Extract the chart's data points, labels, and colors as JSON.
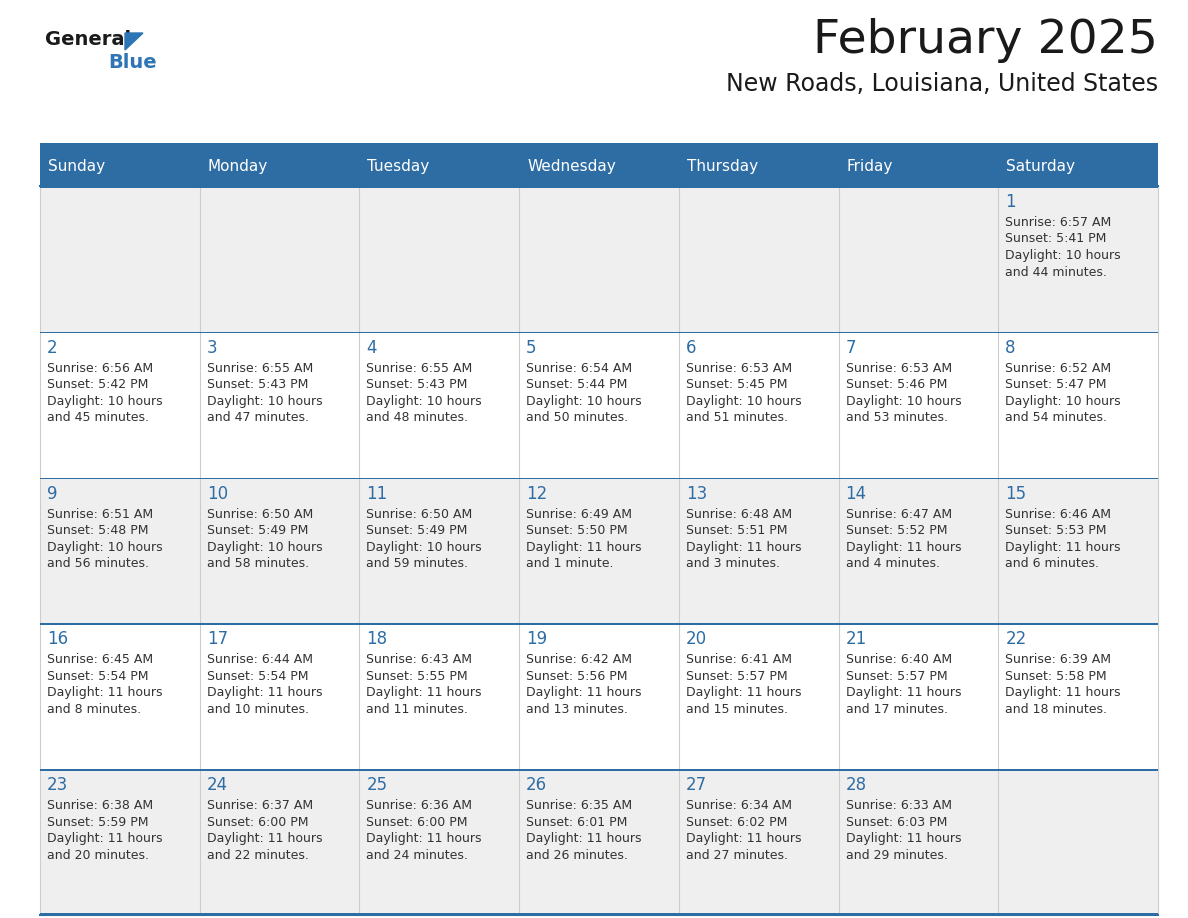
{
  "title": "February 2025",
  "subtitle": "New Roads, Louisiana, United States",
  "header_bg": "#2E6DA4",
  "header_text_color": "#FFFFFF",
  "cell_bg_light": "#EFEFEF",
  "cell_bg_white": "#FFFFFF",
  "day_headers": [
    "Sunday",
    "Monday",
    "Tuesday",
    "Wednesday",
    "Thursday",
    "Friday",
    "Saturday"
  ],
  "title_color": "#1a1a1a",
  "subtitle_color": "#1a1a1a",
  "date_color": "#2E6DA4",
  "info_color": "#333333",
  "line_color": "#2E6DA4",
  "logo_general_color": "#1a1a1a",
  "logo_blue_color": "#2E75B6",
  "calendar_data": [
    [
      null,
      null,
      null,
      null,
      null,
      null,
      {
        "day": "1",
        "sunrise": "6:57 AM",
        "sunset": "5:41 PM",
        "daylight_line1": "Daylight: 10 hours",
        "daylight_line2": "and 44 minutes."
      }
    ],
    [
      {
        "day": "2",
        "sunrise": "6:56 AM",
        "sunset": "5:42 PM",
        "daylight_line1": "Daylight: 10 hours",
        "daylight_line2": "and 45 minutes."
      },
      {
        "day": "3",
        "sunrise": "6:55 AM",
        "sunset": "5:43 PM",
        "daylight_line1": "Daylight: 10 hours",
        "daylight_line2": "and 47 minutes."
      },
      {
        "day": "4",
        "sunrise": "6:55 AM",
        "sunset": "5:43 PM",
        "daylight_line1": "Daylight: 10 hours",
        "daylight_line2": "and 48 minutes."
      },
      {
        "day": "5",
        "sunrise": "6:54 AM",
        "sunset": "5:44 PM",
        "daylight_line1": "Daylight: 10 hours",
        "daylight_line2": "and 50 minutes."
      },
      {
        "day": "6",
        "sunrise": "6:53 AM",
        "sunset": "5:45 PM",
        "daylight_line1": "Daylight: 10 hours",
        "daylight_line2": "and 51 minutes."
      },
      {
        "day": "7",
        "sunrise": "6:53 AM",
        "sunset": "5:46 PM",
        "daylight_line1": "Daylight: 10 hours",
        "daylight_line2": "and 53 minutes."
      },
      {
        "day": "8",
        "sunrise": "6:52 AM",
        "sunset": "5:47 PM",
        "daylight_line1": "Daylight: 10 hours",
        "daylight_line2": "and 54 minutes."
      }
    ],
    [
      {
        "day": "9",
        "sunrise": "6:51 AM",
        "sunset": "5:48 PM",
        "daylight_line1": "Daylight: 10 hours",
        "daylight_line2": "and 56 minutes."
      },
      {
        "day": "10",
        "sunrise": "6:50 AM",
        "sunset": "5:49 PM",
        "daylight_line1": "Daylight: 10 hours",
        "daylight_line2": "and 58 minutes."
      },
      {
        "day": "11",
        "sunrise": "6:50 AM",
        "sunset": "5:49 PM",
        "daylight_line1": "Daylight: 10 hours",
        "daylight_line2": "and 59 minutes."
      },
      {
        "day": "12",
        "sunrise": "6:49 AM",
        "sunset": "5:50 PM",
        "daylight_line1": "Daylight: 11 hours",
        "daylight_line2": "and 1 minute."
      },
      {
        "day": "13",
        "sunrise": "6:48 AM",
        "sunset": "5:51 PM",
        "daylight_line1": "Daylight: 11 hours",
        "daylight_line2": "and 3 minutes."
      },
      {
        "day": "14",
        "sunrise": "6:47 AM",
        "sunset": "5:52 PM",
        "daylight_line1": "Daylight: 11 hours",
        "daylight_line2": "and 4 minutes."
      },
      {
        "day": "15",
        "sunrise": "6:46 AM",
        "sunset": "5:53 PM",
        "daylight_line1": "Daylight: 11 hours",
        "daylight_line2": "and 6 minutes."
      }
    ],
    [
      {
        "day": "16",
        "sunrise": "6:45 AM",
        "sunset": "5:54 PM",
        "daylight_line1": "Daylight: 11 hours",
        "daylight_line2": "and 8 minutes."
      },
      {
        "day": "17",
        "sunrise": "6:44 AM",
        "sunset": "5:54 PM",
        "daylight_line1": "Daylight: 11 hours",
        "daylight_line2": "and 10 minutes."
      },
      {
        "day": "18",
        "sunrise": "6:43 AM",
        "sunset": "5:55 PM",
        "daylight_line1": "Daylight: 11 hours",
        "daylight_line2": "and 11 minutes."
      },
      {
        "day": "19",
        "sunrise": "6:42 AM",
        "sunset": "5:56 PM",
        "daylight_line1": "Daylight: 11 hours",
        "daylight_line2": "and 13 minutes."
      },
      {
        "day": "20",
        "sunrise": "6:41 AM",
        "sunset": "5:57 PM",
        "daylight_line1": "Daylight: 11 hours",
        "daylight_line2": "and 15 minutes."
      },
      {
        "day": "21",
        "sunrise": "6:40 AM",
        "sunset": "5:57 PM",
        "daylight_line1": "Daylight: 11 hours",
        "daylight_line2": "and 17 minutes."
      },
      {
        "day": "22",
        "sunrise": "6:39 AM",
        "sunset": "5:58 PM",
        "daylight_line1": "Daylight: 11 hours",
        "daylight_line2": "and 18 minutes."
      }
    ],
    [
      {
        "day": "23",
        "sunrise": "6:38 AM",
        "sunset": "5:59 PM",
        "daylight_line1": "Daylight: 11 hours",
        "daylight_line2": "and 20 minutes."
      },
      {
        "day": "24",
        "sunrise": "6:37 AM",
        "sunset": "6:00 PM",
        "daylight_line1": "Daylight: 11 hours",
        "daylight_line2": "and 22 minutes."
      },
      {
        "day": "25",
        "sunrise": "6:36 AM",
        "sunset": "6:00 PM",
        "daylight_line1": "Daylight: 11 hours",
        "daylight_line2": "and 24 minutes."
      },
      {
        "day": "26",
        "sunrise": "6:35 AM",
        "sunset": "6:01 PM",
        "daylight_line1": "Daylight: 11 hours",
        "daylight_line2": "and 26 minutes."
      },
      {
        "day": "27",
        "sunrise": "6:34 AM",
        "sunset": "6:02 PM",
        "daylight_line1": "Daylight: 11 hours",
        "daylight_line2": "and 27 minutes."
      },
      {
        "day": "28",
        "sunrise": "6:33 AM",
        "sunset": "6:03 PM",
        "daylight_line1": "Daylight: 11 hours",
        "daylight_line2": "and 29 minutes."
      },
      null
    ]
  ]
}
